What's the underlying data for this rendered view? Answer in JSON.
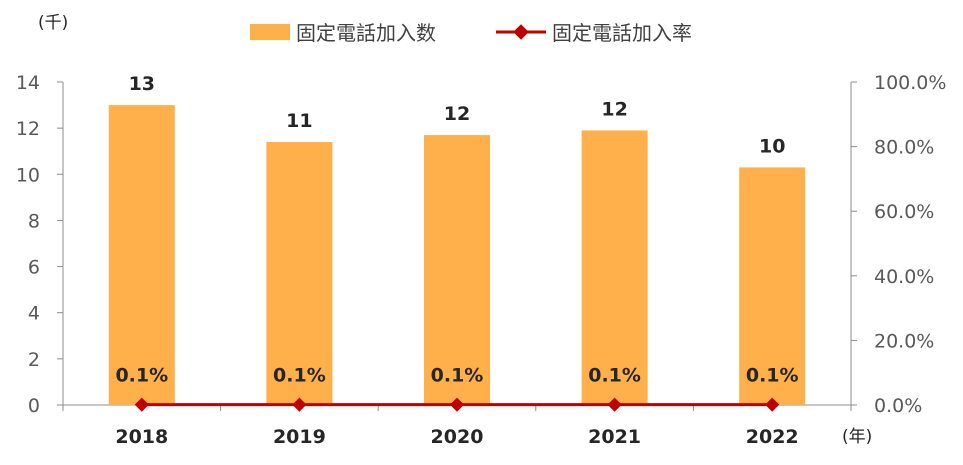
{
  "chart_data": {
    "type": "bar",
    "categories": [
      "2018",
      "2019",
      "2020",
      "2021",
      "2022"
    ],
    "series": [
      {
        "name": "固定電話加入数",
        "type": "bar",
        "axis": "left",
        "color": "#FFB04A",
        "values": [
          13.0,
          11.4,
          11.7,
          11.9,
          10.3
        ],
        "labels": [
          "13",
          "11",
          "12",
          "12",
          "10"
        ]
      },
      {
        "name": "固定電話加入率",
        "type": "line",
        "axis": "right",
        "color": "#C00000",
        "values": [
          0.1,
          0.1,
          0.1,
          0.1,
          0.1
        ],
        "labels": [
          "0.1%",
          "0.1%",
          "0.1%",
          "0.1%",
          "0.1%"
        ]
      }
    ],
    "y_left": {
      "unit_label": "(千)",
      "ylim": [
        0,
        14
      ],
      "ticks": [
        "0",
        "2",
        "4",
        "6",
        "8",
        "10",
        "12",
        "14"
      ]
    },
    "y_right": {
      "ylim": [
        0,
        100
      ],
      "ticks": [
        "0.0%",
        "20.0%",
        "40.0%",
        "60.0%",
        "80.0%",
        "100.0%"
      ]
    },
    "x_unit_label": "(年)",
    "grid": false,
    "legend_position": "top"
  }
}
